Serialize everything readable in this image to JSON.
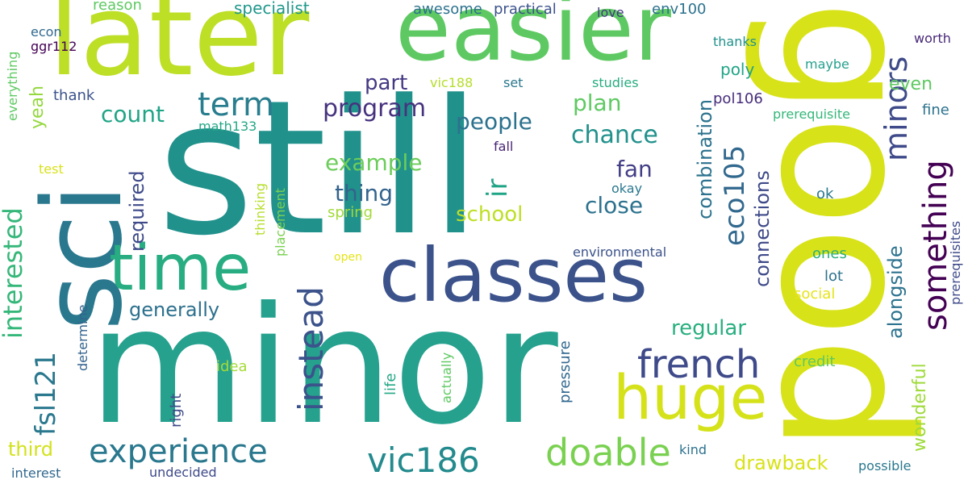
{
  "words": [
    {
      "text": "still",
      "color": "#21918c"
    },
    {
      "text": "good",
      "color": "#d8e219"
    },
    {
      "text": "minor",
      "color": "#25a18e"
    },
    {
      "text": "later",
      "color": "#bddf26"
    },
    {
      "text": "easier",
      "color": "#5ec962"
    },
    {
      "text": "sci",
      "color": "#2a788e"
    },
    {
      "text": "classes",
      "color": "#3b528b"
    },
    {
      "text": "time",
      "color": "#27ad81"
    },
    {
      "text": "huge",
      "color": "#d5e21a"
    },
    {
      "text": "french",
      "color": "#3e4a89"
    },
    {
      "text": "experience",
      "color": "#2a788e"
    },
    {
      "text": "vic186",
      "color": "#238a8d"
    },
    {
      "text": "doable",
      "color": "#7ad151"
    },
    {
      "text": "instead",
      "color": "#3b528b"
    },
    {
      "text": "something",
      "color": "#440154"
    },
    {
      "text": "minors",
      "color": "#3e4a89"
    },
    {
      "text": "eco105",
      "color": "#31688e"
    },
    {
      "text": "interested",
      "color": "#35b779"
    },
    {
      "text": "fsl121",
      "color": "#2a788e"
    },
    {
      "text": "term",
      "color": "#287d8e"
    },
    {
      "text": "program",
      "color": "#46327e"
    },
    {
      "text": "people",
      "color": "#2c728e"
    },
    {
      "text": "chance",
      "color": "#21918c"
    },
    {
      "text": "plan",
      "color": "#5ec962"
    },
    {
      "text": "part",
      "color": "#443983"
    },
    {
      "text": "count",
      "color": "#20a486"
    },
    {
      "text": "example",
      "color": "#6ccd5a"
    },
    {
      "text": "thing",
      "color": "#33638d"
    },
    {
      "text": "school",
      "color": "#bddf26"
    },
    {
      "text": "close",
      "color": "#2c728e"
    },
    {
      "text": "fan",
      "color": "#433e85"
    },
    {
      "text": "ir",
      "color": "#20a486"
    },
    {
      "text": "generally",
      "color": "#2d708e"
    },
    {
      "text": "regular",
      "color": "#29af7f"
    },
    {
      "text": "combination",
      "color": "#2c728e"
    },
    {
      "text": "connections",
      "color": "#3e4a89"
    },
    {
      "text": "alongside",
      "color": "#2c728e"
    },
    {
      "text": "wonderful",
      "color": "#9fda3a"
    },
    {
      "text": "drawback",
      "color": "#d8e219"
    },
    {
      "text": "third",
      "color": "#d2e21b"
    },
    {
      "text": "required",
      "color": "#3e4a89"
    },
    {
      "text": "yeah",
      "color": "#95d840"
    },
    {
      "text": "even",
      "color": "#5ec962"
    },
    {
      "text": "specialist",
      "color": "#1f988b"
    },
    {
      "text": "awesome",
      "color": "#2c728e"
    },
    {
      "text": "practical",
      "color": "#3b528b"
    },
    {
      "text": "env100",
      "color": "#2c728e"
    },
    {
      "text": "love",
      "color": "#443983"
    },
    {
      "text": "reason",
      "color": "#5ec962"
    },
    {
      "text": "econ",
      "color": "#31688e"
    },
    {
      "text": "ggr112",
      "color": "#440154"
    },
    {
      "text": "everything",
      "color": "#5ec962"
    },
    {
      "text": "thank",
      "color": "#3b528b"
    },
    {
      "text": "vic188",
      "color": "#b5de2b"
    },
    {
      "text": "set",
      "color": "#2a788e"
    },
    {
      "text": "studies",
      "color": "#27ad81"
    },
    {
      "text": "thanks",
      "color": "#21918c"
    },
    {
      "text": "worth",
      "color": "#482878"
    },
    {
      "text": "maybe",
      "color": "#25a18e"
    },
    {
      "text": "poly",
      "color": "#20a486"
    },
    {
      "text": "pol106",
      "color": "#472d7b"
    },
    {
      "text": "prerequisite",
      "color": "#35b779"
    },
    {
      "text": "fine",
      "color": "#2c728e"
    },
    {
      "text": "math133",
      "color": "#22a785"
    },
    {
      "text": "fall",
      "color": "#482475"
    },
    {
      "text": "test",
      "color": "#d8e219"
    },
    {
      "text": "thinking",
      "color": "#b5de2b"
    },
    {
      "text": "okay",
      "color": "#2a788e"
    },
    {
      "text": "spring",
      "color": "#a2da37"
    },
    {
      "text": "ok",
      "color": "#2a788e"
    },
    {
      "text": "placement",
      "color": "#7ad151"
    },
    {
      "text": "environmental",
      "color": "#3b528b"
    },
    {
      "text": "open",
      "color": "#e5e419"
    },
    {
      "text": "ones",
      "color": "#29af7f"
    },
    {
      "text": "prerequisites",
      "color": "#3e4a89"
    },
    {
      "text": "lot",
      "color": "#2c728e"
    },
    {
      "text": "social",
      "color": "#e5e419"
    },
    {
      "text": "determine",
      "color": "#33638d"
    },
    {
      "text": "idea",
      "color": "#a5db36"
    },
    {
      "text": "right",
      "color": "#3e4a89"
    },
    {
      "text": "life",
      "color": "#22a785"
    },
    {
      "text": "actually",
      "color": "#5ec962"
    },
    {
      "text": "pressure",
      "color": "#31688e"
    },
    {
      "text": "credit",
      "color": "#5ec962"
    },
    {
      "text": "kind",
      "color": "#2c728e"
    },
    {
      "text": "possible",
      "color": "#2a788e"
    },
    {
      "text": "interest",
      "color": "#31688e"
    },
    {
      "text": "undecided",
      "color": "#3e4a89"
    }
  ]
}
